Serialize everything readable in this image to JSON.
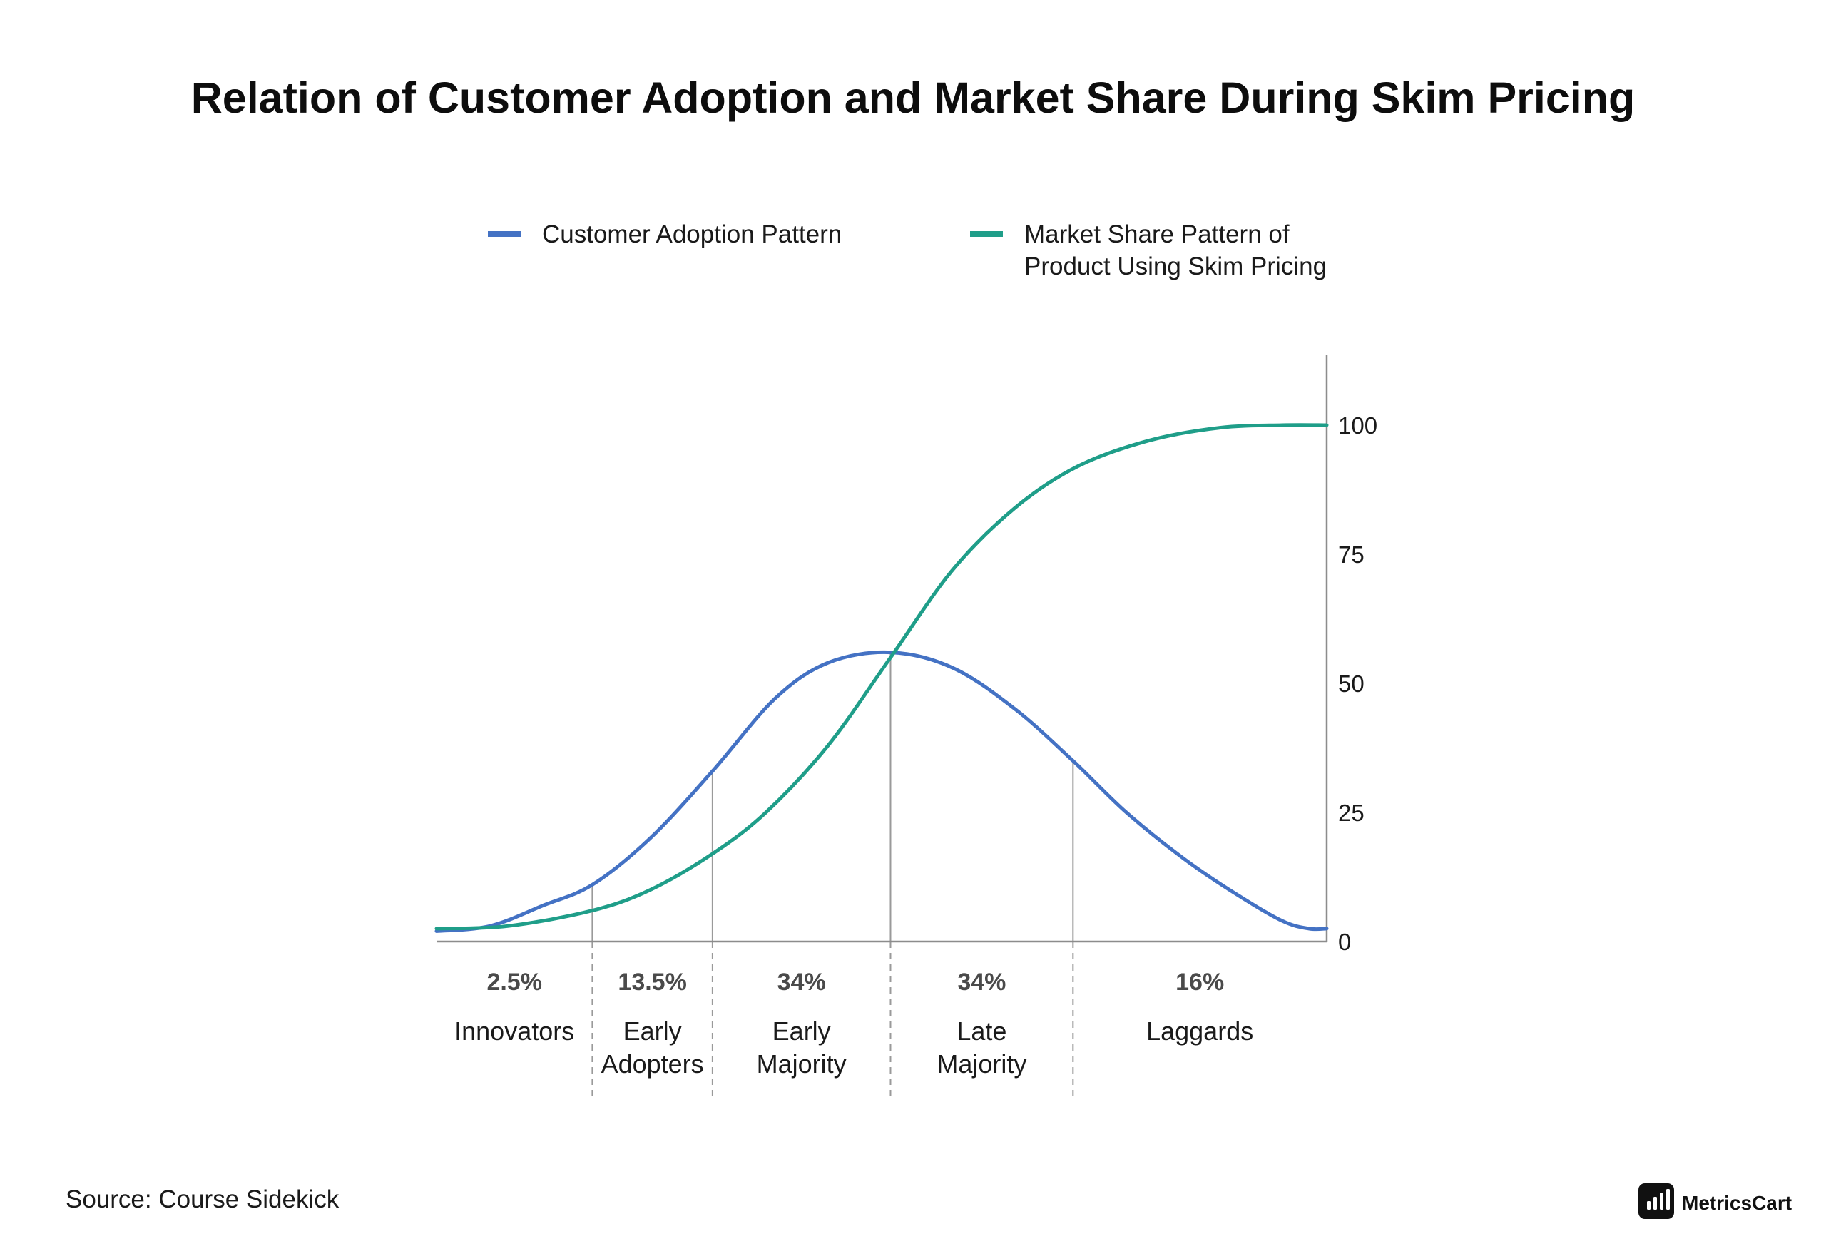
{
  "chart_data": {
    "type": "line",
    "title": "Relation of Customer Adoption and Market Share During Skim Pricing",
    "ylim": [
      0,
      100
    ],
    "yticks": [
      0,
      25,
      50,
      75,
      100
    ],
    "y_axis_side": "right",
    "legend_position": "top-center",
    "series": [
      {
        "name": "Customer Adoption Pattern",
        "color": "#4472c4",
        "points": [
          [
            0,
            2
          ],
          [
            6,
            3
          ],
          [
            12,
            7
          ],
          [
            17.5,
            11
          ],
          [
            24,
            20
          ],
          [
            31,
            33
          ],
          [
            38,
            47
          ],
          [
            44,
            54
          ],
          [
            51,
            56
          ],
          [
            58,
            53
          ],
          [
            65,
            45
          ],
          [
            71.5,
            35
          ],
          [
            77.5,
            25
          ],
          [
            84,
            16
          ],
          [
            90,
            9
          ],
          [
            95,
            4
          ],
          [
            98,
            2.5
          ],
          [
            100,
            2.5
          ]
        ]
      },
      {
        "name": "Market Share Pattern of\nProduct Using Skim Pricing",
        "color": "#1f9e89",
        "points": [
          [
            0,
            2.5
          ],
          [
            8,
            3
          ],
          [
            17.5,
            6
          ],
          [
            24,
            10
          ],
          [
            31,
            17
          ],
          [
            37,
            25
          ],
          [
            44,
            38
          ],
          [
            51,
            55
          ],
          [
            58,
            72
          ],
          [
            65,
            84
          ],
          [
            72,
            92
          ],
          [
            80,
            97
          ],
          [
            88,
            99.5
          ],
          [
            95,
            100
          ],
          [
            100,
            100
          ]
        ]
      }
    ],
    "segments": [
      {
        "start": 0,
        "end": 17.5,
        "percent": "2.5%",
        "label_line1": "Innovators",
        "label_line2": ""
      },
      {
        "start": 17.5,
        "end": 31,
        "percent": "13.5%",
        "label_line1": "Early",
        "label_line2": "Adopters"
      },
      {
        "start": 31,
        "end": 51,
        "percent": "34%",
        "label_line1": "Early",
        "label_line2": "Majority"
      },
      {
        "start": 51,
        "end": 71.5,
        "percent": "34%",
        "label_line1": "Late",
        "label_line2": "Majority"
      },
      {
        "start": 71.5,
        "end": 100,
        "percent": "16%",
        "label_line1": "Laggards",
        "label_line2": ""
      }
    ],
    "source": "Source: Course Sidekick"
  },
  "brand": {
    "name": "MetricsCart",
    "icon": "bar-chart-logo-icon"
  }
}
